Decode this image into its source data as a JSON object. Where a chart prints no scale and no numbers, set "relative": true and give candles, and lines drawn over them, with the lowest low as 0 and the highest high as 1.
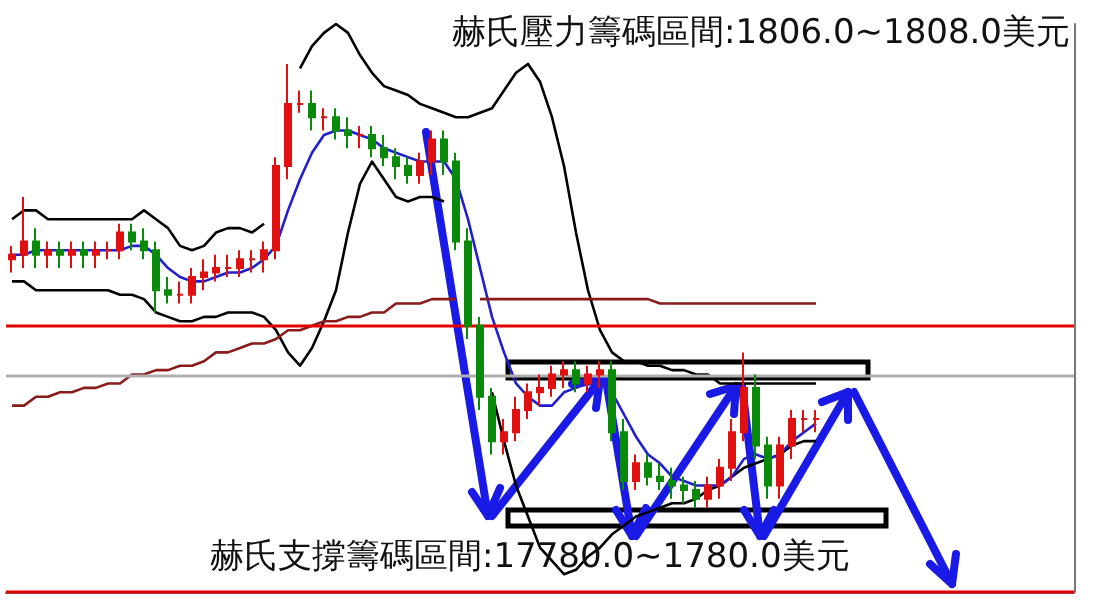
{
  "chart_data": {
    "type": "candlestick",
    "relative": true,
    "categories": [
      null,
      null,
      null,
      null,
      null,
      null,
      null,
      null,
      null,
      null,
      null,
      null,
      null,
      null,
      null,
      null,
      null,
      null,
      null,
      null,
      null,
      null,
      null,
      null,
      null,
      null,
      null,
      null,
      null,
      null,
      null,
      null,
      null,
      null,
      null,
      null,
      null,
      null,
      null,
      null,
      null,
      null,
      null,
      null,
      null,
      null,
      null,
      null,
      null,
      null,
      null,
      null,
      null,
      null,
      null,
      null,
      null,
      null,
      null,
      null,
      null,
      null,
      null,
      null,
      null,
      null,
      null,
      null,
      null,
      null,
      null,
      null,
      null,
      null,
      null,
      null,
      null,
      null,
      null,
      null,
      null,
      null,
      null,
      null,
      null,
      null,
      null,
      null,
      null
    ],
    "ohlc": [
      [
        0.56,
        0.59,
        0.53,
        0.57
      ],
      [
        0.57,
        0.7,
        0.54,
        0.6
      ],
      [
        0.6,
        0.63,
        0.54,
        0.57
      ],
      [
        0.57,
        0.6,
        0.54,
        0.58
      ],
      [
        0.58,
        0.6,
        0.54,
        0.57
      ],
      [
        0.57,
        0.6,
        0.54,
        0.58
      ],
      [
        0.58,
        0.6,
        0.54,
        0.57
      ],
      [
        0.57,
        0.6,
        0.54,
        0.58
      ],
      [
        0.58,
        0.6,
        0.56,
        0.58
      ],
      [
        0.58,
        0.64,
        0.56,
        0.62
      ],
      [
        0.62,
        0.64,
        0.58,
        0.6
      ],
      [
        0.6,
        0.63,
        0.56,
        0.58
      ],
      [
        0.58,
        0.6,
        0.44,
        0.49
      ],
      [
        0.49,
        0.52,
        0.46,
        0.48
      ],
      [
        0.48,
        0.51,
        0.46,
        0.48
      ],
      [
        0.48,
        0.54,
        0.46,
        0.52
      ],
      [
        0.52,
        0.56,
        0.49,
        0.53
      ],
      [
        0.53,
        0.57,
        0.51,
        0.54
      ],
      [
        0.54,
        0.57,
        0.52,
        0.54
      ],
      [
        0.54,
        0.58,
        0.52,
        0.56
      ],
      [
        0.56,
        0.58,
        0.53,
        0.56
      ],
      [
        0.56,
        0.6,
        0.53,
        0.58
      ],
      [
        0.58,
        0.79,
        0.56,
        0.77
      ],
      [
        0.77,
        1.0,
        0.74,
        0.91
      ],
      [
        0.91,
        0.94,
        0.89,
        0.91
      ],
      [
        0.91,
        0.94,
        0.85,
        0.88
      ],
      [
        0.88,
        0.9,
        0.85,
        0.88
      ],
      [
        0.88,
        0.9,
        0.83,
        0.85
      ],
      [
        0.85,
        0.88,
        0.81,
        0.84
      ],
      [
        0.84,
        0.86,
        0.81,
        0.84
      ],
      [
        0.84,
        0.86,
        0.79,
        0.81
      ],
      [
        0.81,
        0.84,
        0.77,
        0.79
      ],
      [
        0.79,
        0.81,
        0.74,
        0.77
      ],
      [
        0.77,
        0.79,
        0.73,
        0.75
      ],
      [
        0.75,
        0.8,
        0.73,
        0.78
      ],
      [
        0.78,
        0.85,
        0.75,
        0.83
      ],
      [
        0.83,
        0.85,
        0.75,
        0.78
      ],
      [
        0.78,
        0.8,
        0.58,
        0.6
      ],
      [
        0.6,
        0.63,
        0.38,
        0.41
      ],
      [
        0.41,
        0.43,
        0.22,
        0.25
      ],
      [
        0.25,
        0.27,
        0.12,
        0.15
      ],
      [
        0.15,
        0.2,
        0.12,
        0.17
      ],
      [
        0.17,
        0.25,
        0.15,
        0.22
      ],
      [
        0.22,
        0.28,
        0.2,
        0.26
      ],
      [
        0.26,
        0.3,
        0.23,
        0.27
      ],
      [
        0.27,
        0.32,
        0.25,
        0.3
      ],
      [
        0.3,
        0.33,
        0.27,
        0.31
      ],
      [
        0.31,
        0.33,
        0.26,
        0.28
      ],
      [
        0.28,
        0.32,
        0.26,
        0.3
      ],
      [
        0.3,
        0.33,
        0.27,
        0.31
      ],
      [
        0.31,
        0.33,
        0.15,
        0.17
      ],
      [
        0.17,
        0.2,
        0.04,
        0.06
      ],
      [
        0.06,
        0.12,
        0.04,
        0.1
      ],
      [
        0.1,
        0.12,
        0.05,
        0.07
      ],
      [
        0.07,
        0.1,
        0.04,
        0.06
      ],
      [
        0.06,
        0.09,
        0.02,
        0.05
      ],
      [
        0.05,
        0.07,
        0.01,
        0.04
      ],
      [
        0.04,
        0.06,
        0.0,
        0.02
      ],
      [
        0.02,
        0.07,
        0.0,
        0.05
      ],
      [
        0.05,
        0.11,
        0.02,
        0.09
      ],
      [
        0.09,
        0.2,
        0.06,
        0.17
      ],
      [
        0.17,
        0.35,
        0.15,
        0.27
      ],
      [
        0.27,
        0.3,
        0.11,
        0.14
      ],
      [
        0.14,
        0.16,
        0.02,
        0.05
      ],
      [
        0.05,
        0.16,
        0.02,
        0.14
      ],
      [
        0.14,
        0.22,
        0.11,
        0.2
      ],
      [
        0.2,
        0.22,
        0.17,
        0.2
      ],
      [
        0.2,
        0.22,
        0.17,
        0.2
      ],
      null,
      null,
      null,
      null,
      null,
      null,
      null,
      null,
      null,
      null,
      null,
      null,
      null,
      null,
      null,
      null,
      null,
      null,
      null,
      null,
      null
    ],
    "series": [
      {
        "type": "line",
        "color": "#000000",
        "values": [
          0.65,
          0.67,
          0.67,
          0.65,
          0.65,
          0.65,
          0.65,
          0.65,
          0.65,
          0.65,
          0.65,
          0.67,
          0.65,
          0.63,
          0.59,
          0.58,
          0.59,
          0.62,
          0.63,
          0.63,
          0.62,
          0.64,
          null,
          null,
          0.99,
          1.04,
          1.07,
          1.09,
          1.07,
          1.02,
          0.98,
          0.95,
          0.94,
          0.93,
          0.91,
          0.9,
          0.89,
          0.88,
          0.88,
          0.89,
          0.9,
          0.94,
          0.98,
          1.0,
          0.96,
          0.88,
          0.77,
          0.62,
          0.49,
          0.4,
          0.35,
          0.33,
          0.33,
          0.32,
          0.32,
          0.31,
          0.31,
          0.3,
          0.3,
          0.28,
          0.28,
          0.28,
          0.28,
          0.28,
          0.28,
          0.28,
          0.28,
          0.28,
          null,
          null,
          null,
          null,
          null,
          null,
          null,
          null,
          null,
          null,
          null,
          null,
          null,
          null,
          null,
          null,
          null,
          null,
          null,
          null,
          null
        ]
      },
      {
        "type": "line",
        "color": "#000000",
        "values": [
          0.51,
          0.51,
          0.49,
          0.49,
          0.49,
          0.49,
          0.49,
          0.49,
          0.49,
          0.48,
          0.48,
          0.47,
          0.44,
          0.43,
          0.42,
          0.42,
          0.43,
          0.43,
          0.44,
          0.44,
          0.44,
          0.43,
          0.4,
          0.35,
          0.32,
          0.36,
          0.42,
          0.49,
          0.62,
          0.73,
          0.78,
          0.74,
          0.7,
          0.69,
          0.7,
          0.7,
          0.69,
          null,
          null,
          null,
          0.26,
          0.15,
          0.05,
          -0.02,
          -0.09,
          -0.12,
          -0.15,
          -0.14,
          -0.11,
          -0.09,
          -0.06,
          -0.04,
          -0.02,
          -0.01,
          0,
          0.01,
          0.01,
          0.02,
          0.04,
          0.05,
          0.07,
          0.09,
          0.1,
          0.11,
          0.12,
          0.14,
          0.15,
          0.15,
          null,
          null,
          null,
          null,
          null,
          null,
          null,
          null,
          null,
          null,
          null,
          null,
          null,
          null,
          null,
          null,
          null,
          null,
          null,
          null,
          null
        ]
      },
      {
        "type": "line",
        "color": "#1f1fd0",
        "values": [
          0.57,
          0.57,
          0.58,
          0.58,
          0.58,
          0.58,
          0.58,
          0.58,
          0.58,
          0.58,
          0.59,
          0.59,
          0.57,
          0.54,
          0.52,
          0.51,
          0.51,
          0.52,
          0.53,
          0.53,
          0.54,
          0.56,
          0.59,
          0.67,
          0.74,
          0.8,
          0.84,
          0.85,
          0.85,
          0.84,
          0.83,
          0.81,
          0.8,
          0.79,
          0.78,
          0.78,
          0.78,
          0.74,
          0.65,
          0.54,
          0.43,
          0.35,
          0.28,
          0.25,
          0.23,
          0.23,
          0.26,
          0.27,
          0.28,
          0.28,
          0.26,
          0.21,
          0.16,
          0.12,
          0.1,
          0.07,
          0.06,
          0.05,
          0.05,
          0.05,
          0.07,
          0.11,
          0.12,
          0.11,
          0.12,
          0.15,
          0.17,
          0.19,
          null,
          null,
          null,
          null,
          null,
          null,
          null,
          null,
          null,
          null,
          null,
          null,
          null,
          null,
          null,
          null,
          null,
          null,
          null,
          null,
          null
        ]
      },
      {
        "type": "line",
        "color": "#8b1a1a",
        "values": [
          0.23,
          0.23,
          0.25,
          0.25,
          0.26,
          0.26,
          0.27,
          0.27,
          0.28,
          0.28,
          0.3,
          0.3,
          0.31,
          0.31,
          0.32,
          0.32,
          0.33,
          0.35,
          0.35,
          0.36,
          0.37,
          0.37,
          0.38,
          0.4,
          0.4,
          0.41,
          0.42,
          0.42,
          0.43,
          0.43,
          0.44,
          0.44,
          0.46,
          0.46,
          0.46,
          0.47,
          0.47,
          0.47,
          null,
          0.47,
          0.47,
          0.47,
          0.47,
          0.47,
          0.47,
          0.47,
          0.47,
          0.47,
          0.47,
          0.47,
          0.47,
          0.47,
          0.47,
          0.47,
          0.46,
          0.46,
          0.46,
          0.46,
          0.46,
          0.46,
          0.46,
          0.46,
          0.46,
          0.46,
          0.46,
          0.46,
          0.46,
          0.46,
          null,
          null,
          null,
          null,
          null,
          null,
          null,
          null,
          null,
          null,
          null,
          null,
          null,
          null,
          null,
          null,
          null,
          null,
          null,
          null,
          null
        ]
      }
    ],
    "ref_lines": [
      {
        "axis": "y",
        "value": 0.41,
        "color": "#e00000"
      },
      {
        "axis": "y",
        "value": -0.19,
        "color": "#e00000"
      },
      {
        "axis": "y",
        "value": 0.3,
        "color": "#b0b0b0"
      }
    ],
    "annotations": [
      "赫氏壓力籌碼區間:1806.0~1808.0美元",
      "赫氏支撐籌碼區間:17780.0~1780.0美元"
    ],
    "grid": false
  }
}
